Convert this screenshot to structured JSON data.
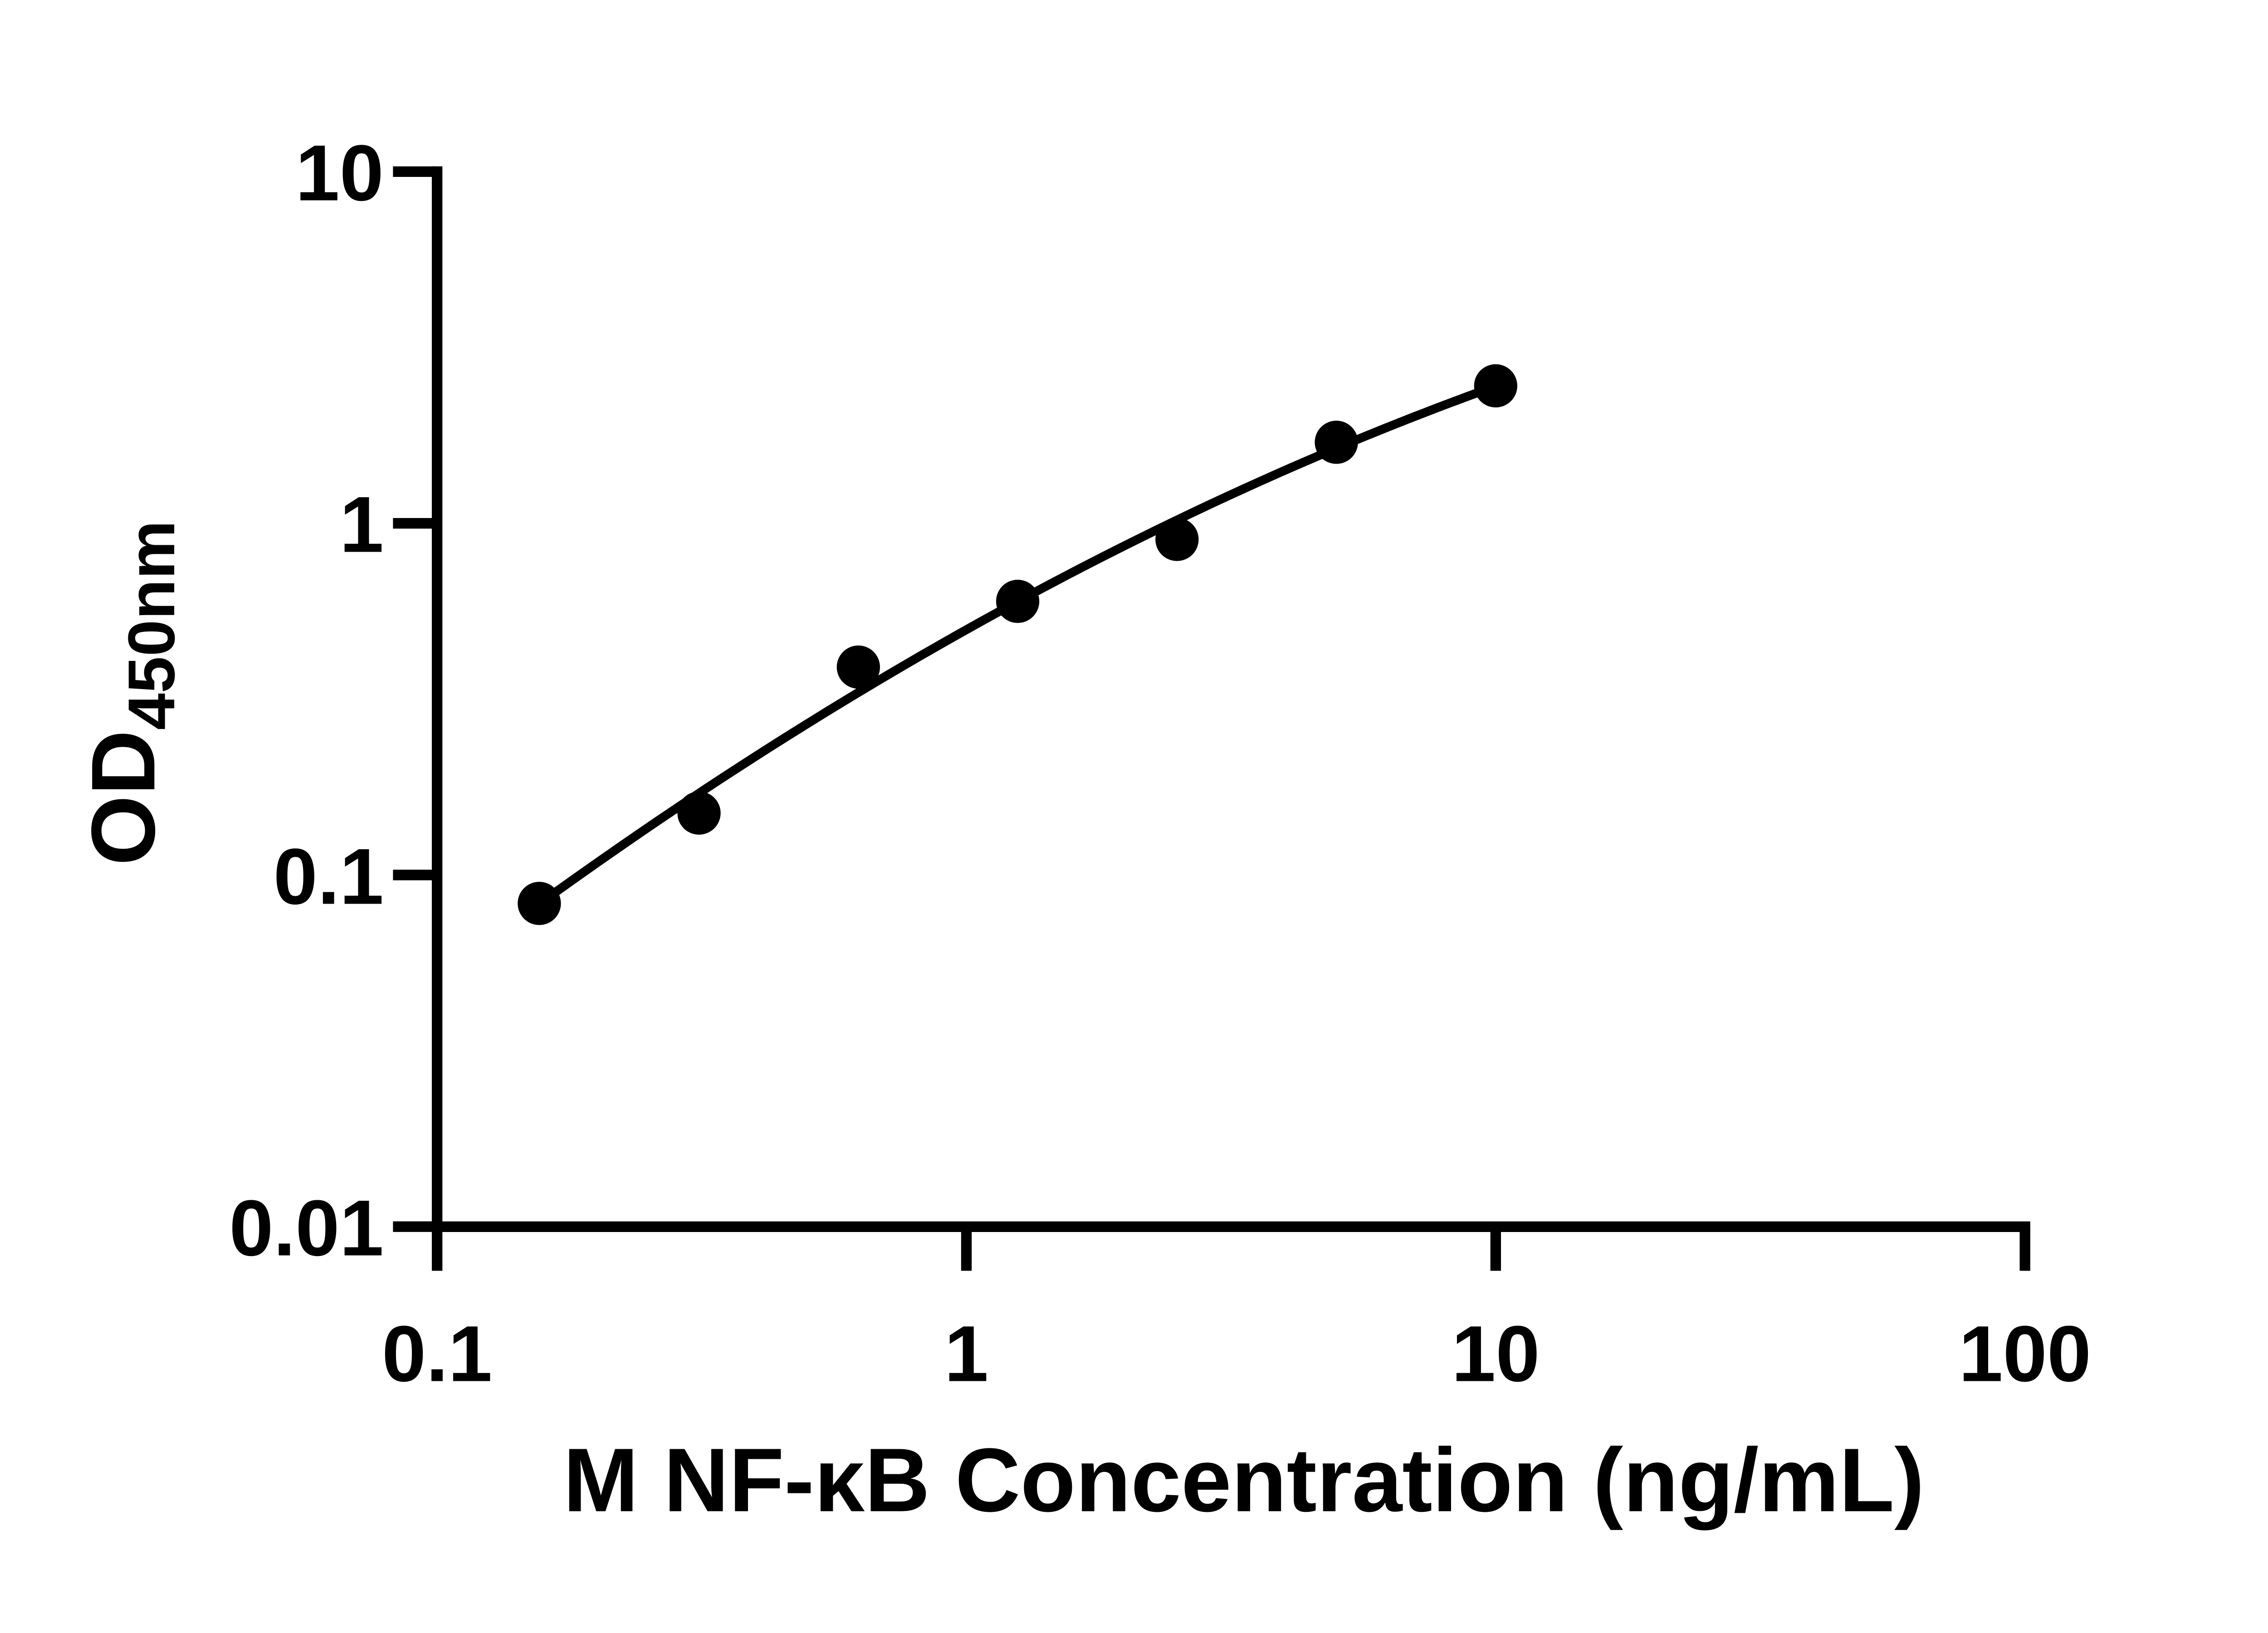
{
  "figure": {
    "background_color": "#ffffff",
    "foreground_color": "#000000"
  },
  "chart_data": {
    "type": "scatter",
    "title": "",
    "xlabel": "M NF-κB Concentration (ng/mL)",
    "ylabel_main": "OD",
    "ylabel_sub": "450nm",
    "xscale": "log",
    "yscale": "log",
    "xlim": [
      0.1,
      100
    ],
    "ylim": [
      0.01,
      10
    ],
    "grid": false,
    "xticks": [
      {
        "value": 0.1,
        "label": "0.1"
      },
      {
        "value": 1,
        "label": "1"
      },
      {
        "value": 10,
        "label": "10"
      },
      {
        "value": 100,
        "label": "100"
      }
    ],
    "yticks": [
      {
        "value": 10,
        "label": "10"
      },
      {
        "value": 1,
        "label": "1"
      },
      {
        "value": 0.1,
        "label": "0.1"
      },
      {
        "value": 0.01,
        "label": "0.01"
      }
    ],
    "series": [
      {
        "name": "standard-curve-points",
        "marker": "filled-circle",
        "color": "#000000",
        "x": [
          0.156,
          0.3125,
          0.625,
          1.25,
          2.5,
          5,
          10
        ],
        "y": [
          0.083,
          0.15,
          0.39,
          0.6,
          0.9,
          1.7,
          2.46
        ]
      }
    ],
    "fit_curve": {
      "model": "log10(y) = a + b*log10(x) + c*log10(x)^2",
      "a": -0.3025,
      "b": 0.844,
      "c": -0.1514,
      "x_range": [
        0.156,
        10
      ],
      "color": "#000000"
    }
  }
}
